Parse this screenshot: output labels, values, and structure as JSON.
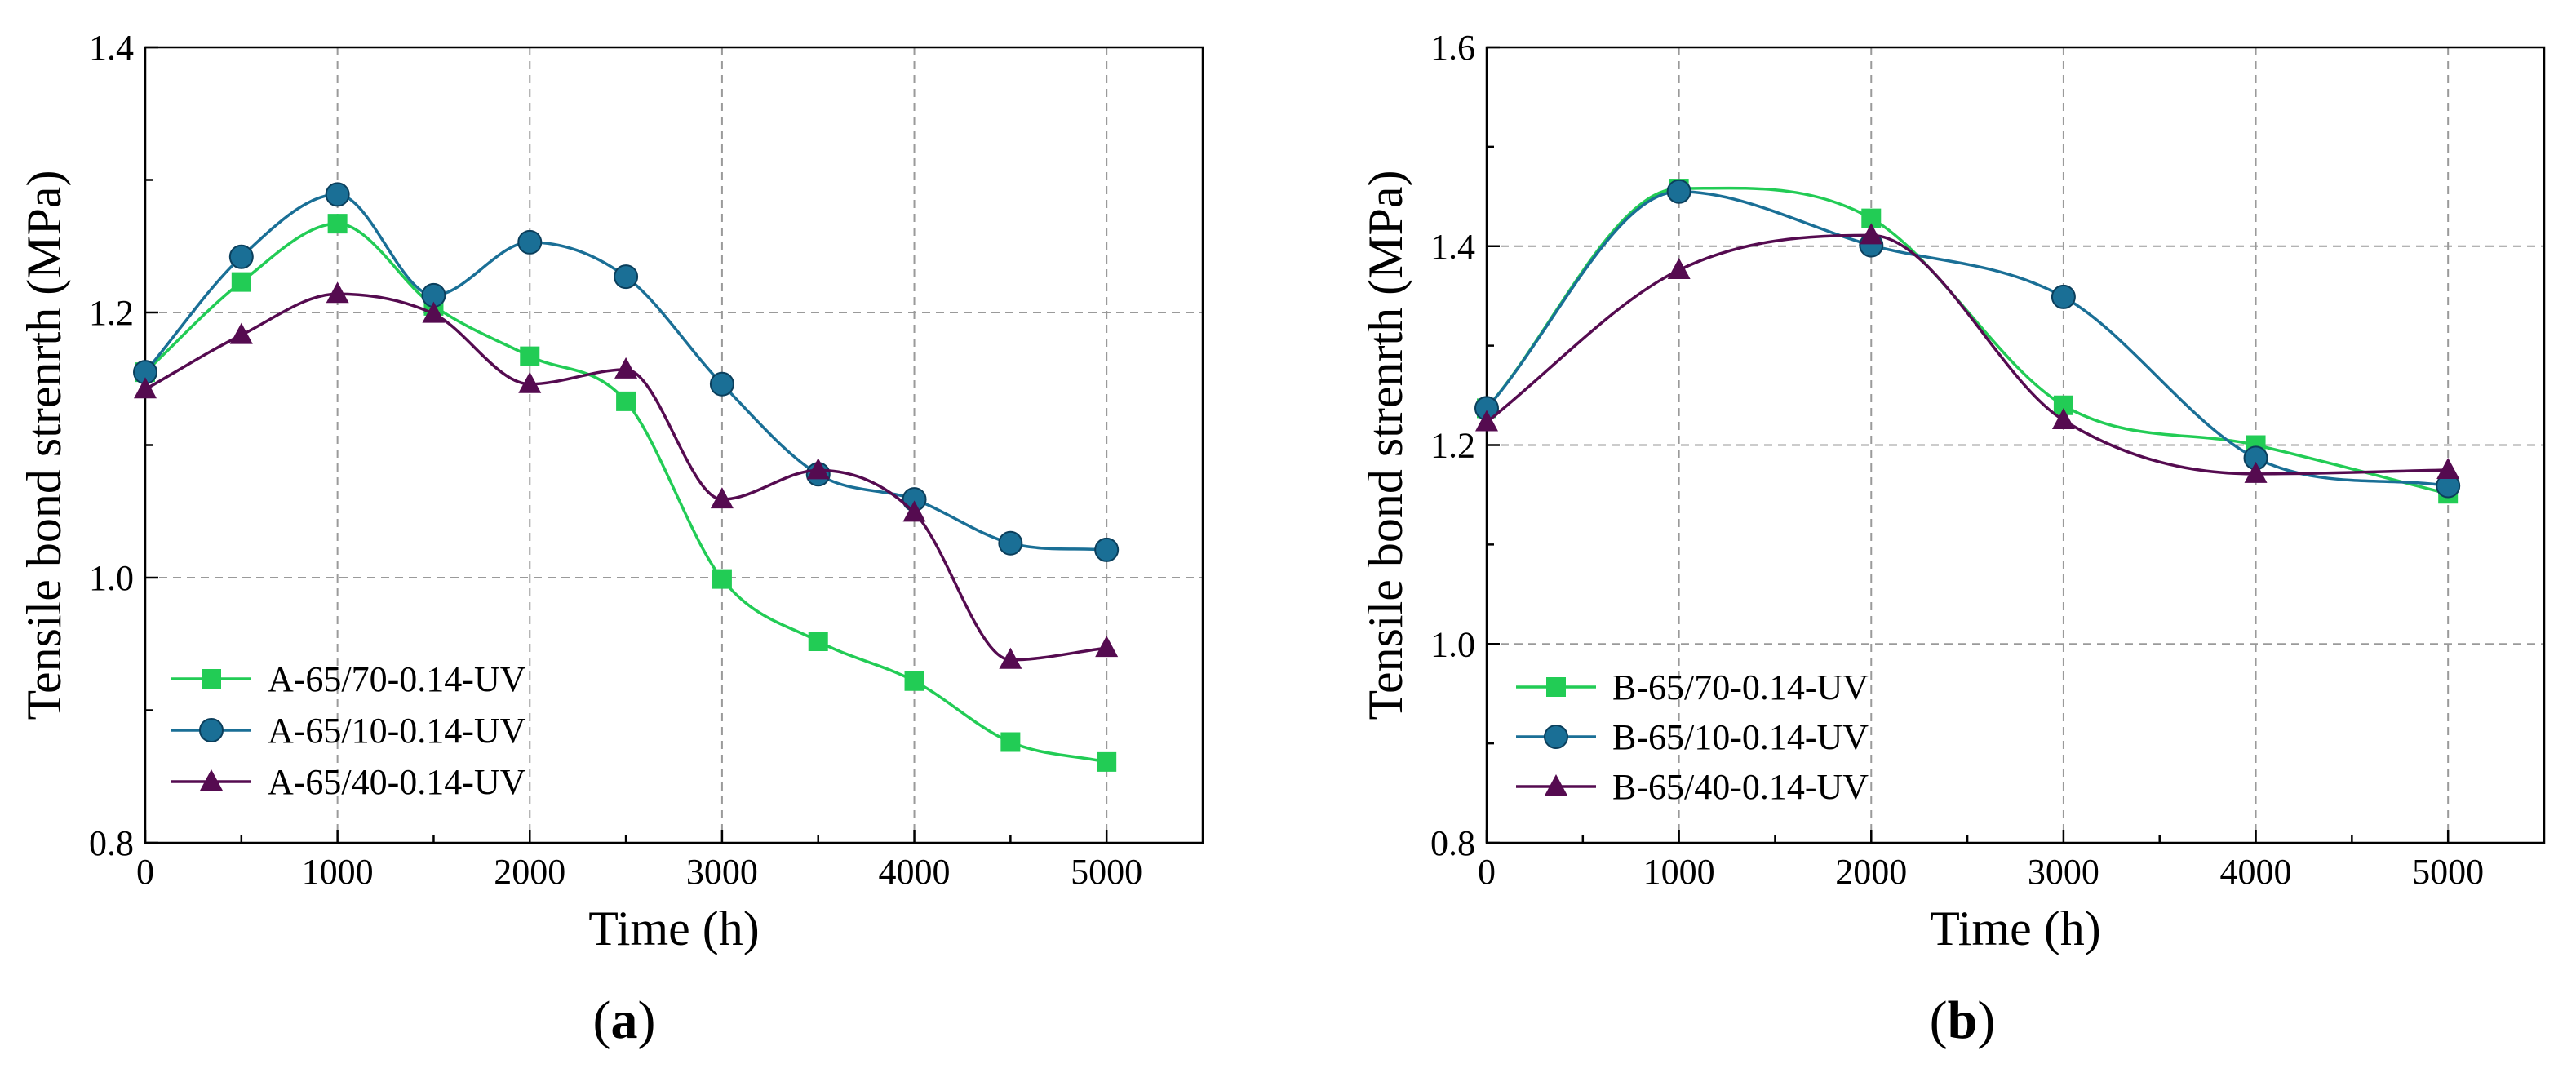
{
  "chart_data": [
    {
      "type": "line",
      "panel_label": "(a)",
      "xlabel": "Time (h)",
      "ylabel": "Tensile bond strenrth (MPa)",
      "xlim": [
        0,
        5500
      ],
      "ylim": [
        0.8,
        1.4
      ],
      "xticks": [
        0,
        1000,
        2000,
        3000,
        4000,
        5000
      ],
      "xtick_labels": [
        "0",
        "1000",
        "2000",
        "3000",
        "4000",
        "5000"
      ],
      "yticks": [
        0.8,
        1.0,
        1.2,
        1.4
      ],
      "ytick_labels": [
        "0.8",
        "1.0",
        "1.2",
        "1.4"
      ],
      "grid": true,
      "legend_position": "bottom-left",
      "series": [
        {
          "name": "A-65/70-0.14-UV",
          "marker": "square",
          "color": "#22cc55",
          "x": [
            0,
            500,
            1000,
            1500,
            2000,
            2500,
            3000,
            3500,
            4000,
            4500,
            5000
          ],
          "y": [
            1.155,
            1.223,
            1.267,
            1.205,
            1.167,
            1.133,
            0.999,
            0.952,
            0.922,
            0.876,
            0.861
          ]
        },
        {
          "name": "A-65/10-0.14-UV",
          "marker": "circle",
          "color": "#1a6f96",
          "x": [
            0,
            500,
            1000,
            1500,
            2000,
            2500,
            3000,
            3500,
            4000,
            4500,
            5000
          ],
          "y": [
            1.155,
            1.242,
            1.289,
            1.213,
            1.253,
            1.227,
            1.146,
            1.078,
            1.059,
            1.026,
            1.021
          ]
        },
        {
          "name": "A-65/40-0.14-UV",
          "marker": "triangle",
          "color": "#550b50",
          "x": [
            0,
            500,
            1000,
            1500,
            2000,
            2500,
            3000,
            3500,
            4000,
            4500,
            5000
          ],
          "y": [
            1.142,
            1.183,
            1.214,
            1.199,
            1.146,
            1.157,
            1.059,
            1.081,
            1.049,
            0.938,
            0.947
          ]
        }
      ]
    },
    {
      "type": "line",
      "panel_label": "(b)",
      "xlabel": "Time (h)",
      "ylabel": "Tensile bond strenrth (MPa)",
      "xlim": [
        0,
        5500
      ],
      "ylim": [
        0.8,
        1.6
      ],
      "xticks": [
        0,
        1000,
        2000,
        3000,
        4000,
        5000
      ],
      "xtick_labels": [
        "0",
        "1000",
        "2000",
        "3000",
        "4000",
        "5000"
      ],
      "yticks": [
        0.8,
        1.0,
        1.2,
        1.4,
        1.6
      ],
      "ytick_labels": [
        "0.8",
        "1.0",
        "1.2",
        "1.4",
        "1.6"
      ],
      "grid": true,
      "legend_position": "bottom-left",
      "series": [
        {
          "name": "B-65/70-0.14-UV",
          "marker": "square",
          "color": "#22cc55",
          "x": [
            0,
            1000,
            2000,
            3000,
            4000,
            5000
          ],
          "y": [
            1.237,
            1.458,
            1.428,
            1.24,
            1.2,
            1.151
          ]
        },
        {
          "name": "B-65/10-0.14-UV",
          "marker": "circle",
          "color": "#1a6f96",
          "x": [
            0,
            1000,
            2000,
            3000,
            4000,
            5000
          ],
          "y": [
            1.237,
            1.455,
            1.401,
            1.349,
            1.187,
            1.159
          ]
        },
        {
          "name": "B-65/40-0.14-UV",
          "marker": "triangle",
          "color": "#550b50",
          "x": [
            0,
            1000,
            2000,
            3000,
            4000,
            5000
          ],
          "y": [
            1.223,
            1.376,
            1.411,
            1.225,
            1.171,
            1.175
          ]
        }
      ]
    }
  ]
}
